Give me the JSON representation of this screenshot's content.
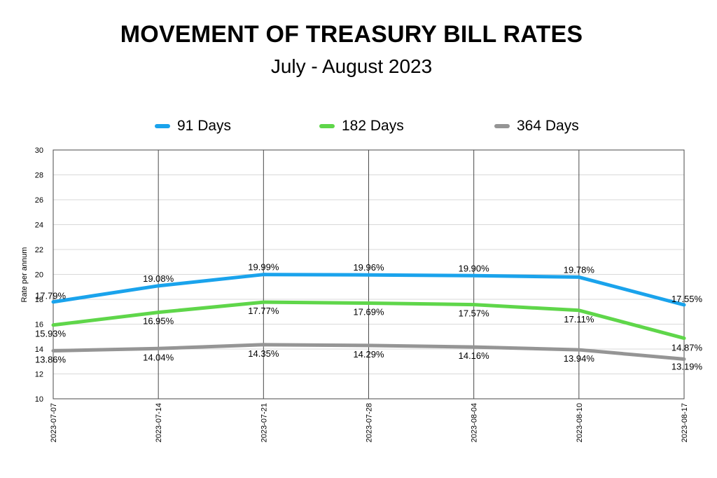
{
  "header": {
    "title": "MOVEMENT OF TREASURY BILL RATES",
    "subtitle": "July - August 2023"
  },
  "chart_data": {
    "type": "line",
    "title": "MOVEMENT OF TREASURY BILL RATES",
    "subtitle": "July - August 2023",
    "xlabel": "",
    "ylabel": "Rate per annum",
    "categories": [
      "2023-07-07",
      "2023-07-14",
      "2023-07-21",
      "2023-07-28",
      "2023-08-04",
      "2023-08-10",
      "2023-08-17"
    ],
    "ylim": [
      10,
      30
    ],
    "yticks": [
      10,
      12,
      14,
      16,
      18,
      20,
      22,
      24,
      26,
      28,
      30
    ],
    "grid": true,
    "legend_position": "top",
    "series": [
      {
        "name": "91 Days",
        "color": "#1aa3ec",
        "values": [
          17.79,
          19.08,
          19.99,
          19.96,
          19.9,
          19.78,
          17.55
        ],
        "labels": [
          "17.79%",
          "19.08%",
          "19.99%",
          "19.96%",
          "19.90%",
          "19.78%",
          "17.55%"
        ]
      },
      {
        "name": "182 Days",
        "color": "#5fd64a",
        "values": [
          15.93,
          16.95,
          17.77,
          17.69,
          17.57,
          17.11,
          14.87
        ],
        "labels": [
          "15.93%",
          "16.95%",
          "17.77%",
          "17.69%",
          "17.57%",
          "17.11%",
          "14.87%"
        ]
      },
      {
        "name": "364 Days",
        "color": "#959595",
        "values": [
          13.86,
          14.04,
          14.35,
          14.29,
          14.16,
          13.94,
          13.19
        ],
        "labels": [
          "13.86%",
          "14.04%",
          "14.35%",
          "14.29%",
          "14.16%",
          "13.94%",
          "13.19%"
        ]
      }
    ]
  }
}
